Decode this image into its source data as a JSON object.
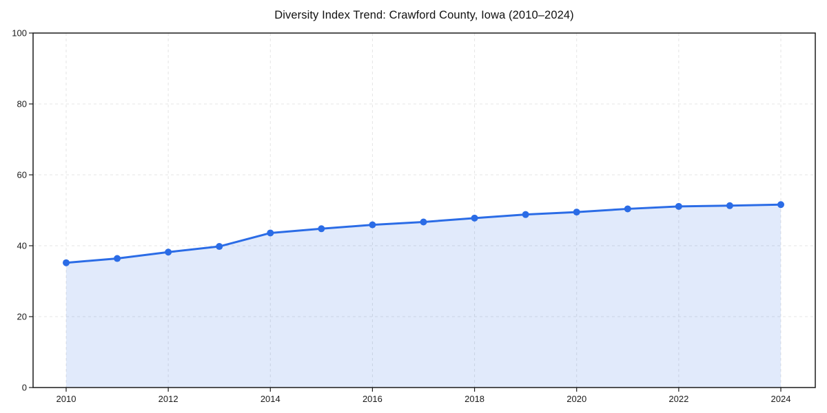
{
  "chart_data": {
    "type": "line",
    "title": "Diversity Index Trend: Crawford County, Iowa (2010–2024)",
    "x": [
      2010,
      2011,
      2012,
      2013,
      2014,
      2015,
      2016,
      2017,
      2018,
      2019,
      2020,
      2021,
      2022,
      2023,
      2024
    ],
    "values": [
      35.2,
      36.4,
      38.2,
      39.8,
      43.6,
      44.8,
      45.9,
      46.7,
      47.8,
      48.8,
      49.5,
      50.4,
      51.1,
      51.3,
      51.6
    ],
    "xlabel": "",
    "ylabel": "",
    "ylim": [
      0,
      100
    ],
    "yticks": [
      0,
      20,
      40,
      60,
      80,
      100
    ],
    "xticks": [
      2010,
      2012,
      2014,
      2016,
      2018,
      2020,
      2022,
      2024
    ],
    "grid": true,
    "grid_style": "dashed",
    "legend": false,
    "area_fill": true,
    "marker": "circle",
    "colors": {
      "line": "#2b6ce6",
      "marker": "#2b6ce6",
      "area": "rgba(43,108,230,0.14)",
      "grid": "#e4e4e4",
      "axis": "#1a1a1a",
      "text": "#1a1a1a",
      "background": "#ffffff"
    }
  }
}
